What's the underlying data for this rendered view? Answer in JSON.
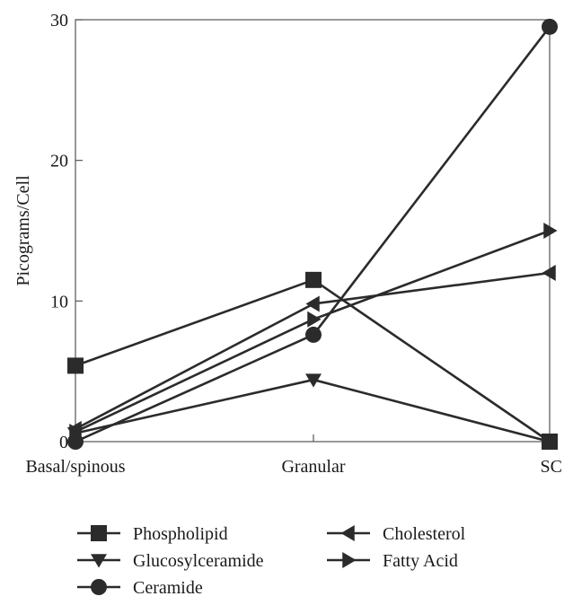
{
  "chart_data": {
    "type": "line",
    "title": "",
    "xlabel": "",
    "ylabel": "Picograms/Cell",
    "categories": [
      "Basal/spinous",
      "Granular",
      "SC"
    ],
    "ylim": [
      0,
      30
    ],
    "yticks": [
      0,
      10,
      20,
      30
    ],
    "grid": false,
    "legend_position": "bottom",
    "series": [
      {
        "name": "Phospholipid",
        "marker": "square",
        "values": [
          5.4,
          11.5,
          0
        ]
      },
      {
        "name": "Glucosylceramide",
        "marker": "triangle-down",
        "values": [
          0.6,
          4.4,
          0
        ]
      },
      {
        "name": "Ceramide",
        "marker": "circle",
        "values": [
          0,
          7.6,
          29.5
        ]
      },
      {
        "name": "Cholesterol",
        "marker": "triangle-left",
        "values": [
          0.9,
          9.8,
          12.0
        ]
      },
      {
        "name": "Fatty Acid",
        "marker": "triangle-right",
        "values": [
          0.7,
          8.7,
          15.0
        ]
      }
    ],
    "colors": {
      "line": "#2b2b2b",
      "axis": "#555555"
    }
  }
}
